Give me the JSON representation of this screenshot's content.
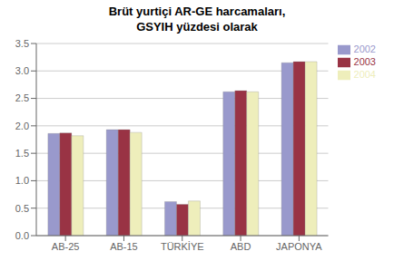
{
  "chart_data": {
    "type": "bar",
    "title": "Brüt yurtiçi AR-GE harcamaları,\nGSYIH yüzdesi olarak",
    "categories": [
      "AB-25",
      "AB-15",
      "TÜRKİYE",
      "ABD",
      "JAPONYA"
    ],
    "series": [
      {
        "name": "2002",
        "color": "#9999cc",
        "values": [
          1.86,
          1.93,
          0.62,
          2.62,
          3.15
        ]
      },
      {
        "name": "2003",
        "color": "#993344",
        "values": [
          1.87,
          1.93,
          0.57,
          2.64,
          3.17
        ]
      },
      {
        "name": "2004",
        "color": "#eeeebb",
        "values": [
          1.82,
          1.88,
          0.63,
          2.62,
          3.17
        ]
      }
    ],
    "ylim": [
      0,
      3.5
    ],
    "yticks": [
      {
        "value": 0,
        "label": "0.0"
      },
      0.5,
      {
        "value": 1.0,
        "label": "1.0"
      },
      1.5,
      {
        "value": 2.0,
        "label": "2.0"
      },
      2.5,
      {
        "value": 3.0,
        "label": "3.0"
      },
      3.5
    ],
    "grid": true,
    "legend": "right"
  }
}
